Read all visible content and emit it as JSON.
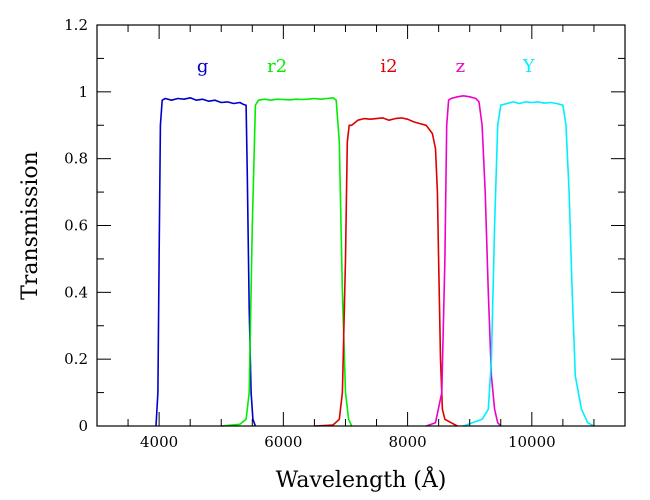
{
  "chart_data": {
    "type": "line",
    "title": "",
    "xlabel": "Wavelength (Å)",
    "ylabel": "Transmission",
    "xlim": [
      3000,
      11500
    ],
    "ylim": [
      0,
      1.2
    ],
    "x_ticks": [
      4000,
      6000,
      8000,
      10000
    ],
    "x_tick_labels": [
      "4000",
      "6000",
      "8000",
      "10000"
    ],
    "y_ticks": [
      0,
      0.2,
      0.4,
      0.6,
      0.8,
      1,
      1.2
    ],
    "y_tick_labels": [
      "0",
      "0.2",
      "0.4",
      "0.6",
      "0.8",
      "1",
      "1.2"
    ],
    "grid": false,
    "series": [
      {
        "name": "g",
        "color": "#0000cc",
        "label_at": [
          4700,
          1.06
        ],
        "x": [
          3950,
          3980,
          4000,
          4020,
          4050,
          4100,
          4200,
          4300,
          4400,
          4500,
          4600,
          4700,
          4800,
          4900,
          5000,
          5100,
          5200,
          5300,
          5350,
          5400,
          5420,
          5450,
          5480,
          5510,
          5550
        ],
        "y": [
          0.0,
          0.1,
          0.5,
          0.9,
          0.975,
          0.98,
          0.975,
          0.98,
          0.978,
          0.982,
          0.975,
          0.978,
          0.972,
          0.975,
          0.968,
          0.97,
          0.965,
          0.968,
          0.963,
          0.96,
          0.75,
          0.35,
          0.1,
          0.02,
          0.0
        ]
      },
      {
        "name": "r2",
        "color": "#00ee00",
        "label_at": [
          5900,
          1.06
        ],
        "x": [
          5000,
          5300,
          5400,
          5450,
          5500,
          5550,
          5600,
          5700,
          5800,
          5900,
          6000,
          6100,
          6200,
          6300,
          6400,
          6500,
          6600,
          6700,
          6800,
          6850,
          6900,
          6950,
          7000,
          7050,
          7100
        ],
        "y": [
          0.0,
          0.005,
          0.02,
          0.1,
          0.6,
          0.96,
          0.975,
          0.978,
          0.975,
          0.978,
          0.977,
          0.976,
          0.978,
          0.977,
          0.978,
          0.98,
          0.978,
          0.98,
          0.982,
          0.975,
          0.85,
          0.4,
          0.1,
          0.02,
          0.0
        ]
      },
      {
        "name": "i2",
        "color": "#dd0000",
        "label_at": [
          7700,
          1.06
        ],
        "x": [
          6500,
          6800,
          6900,
          6950,
          7000,
          7030,
          7060,
          7100,
          7200,
          7300,
          7400,
          7500,
          7600,
          7700,
          7800,
          7900,
          8000,
          8100,
          8200,
          8300,
          8400,
          8450,
          8480,
          8500,
          8530,
          8560,
          8600,
          8700,
          8800
        ],
        "y": [
          0.0,
          0.003,
          0.02,
          0.1,
          0.5,
          0.85,
          0.9,
          0.9,
          0.915,
          0.92,
          0.918,
          0.92,
          0.922,
          0.915,
          0.92,
          0.922,
          0.918,
          0.91,
          0.905,
          0.9,
          0.875,
          0.83,
          0.7,
          0.5,
          0.2,
          0.05,
          0.02,
          0.01,
          0.0
        ]
      },
      {
        "name": "z",
        "color": "#ee00cc",
        "label_at": [
          8850,
          1.06
        ],
        "x": [
          8300,
          8450,
          8550,
          8600,
          8630,
          8660,
          8700,
          8800,
          8900,
          9000,
          9100,
          9150,
          9200,
          9250,
          9300,
          9350,
          9400,
          9450,
          9500
        ],
        "y": [
          0.0,
          0.01,
          0.1,
          0.5,
          0.9,
          0.975,
          0.98,
          0.985,
          0.988,
          0.985,
          0.98,
          0.97,
          0.9,
          0.7,
          0.4,
          0.15,
          0.05,
          0.01,
          0.0
        ]
      },
      {
        "name": "Y",
        "color": "#00eeff",
        "label_at": [
          9950,
          1.06
        ],
        "x": [
          8900,
          9200,
          9300,
          9350,
          9400,
          9450,
          9500,
          9600,
          9700,
          9800,
          9900,
          10000,
          10100,
          10200,
          10300,
          10400,
          10500,
          10550,
          10600,
          10650,
          10700,
          10800,
          10900,
          11000
        ],
        "y": [
          0.0,
          0.02,
          0.05,
          0.2,
          0.6,
          0.9,
          0.96,
          0.965,
          0.97,
          0.965,
          0.97,
          0.968,
          0.97,
          0.966,
          0.968,
          0.965,
          0.96,
          0.9,
          0.7,
          0.4,
          0.15,
          0.05,
          0.01,
          0.0
        ]
      }
    ]
  }
}
